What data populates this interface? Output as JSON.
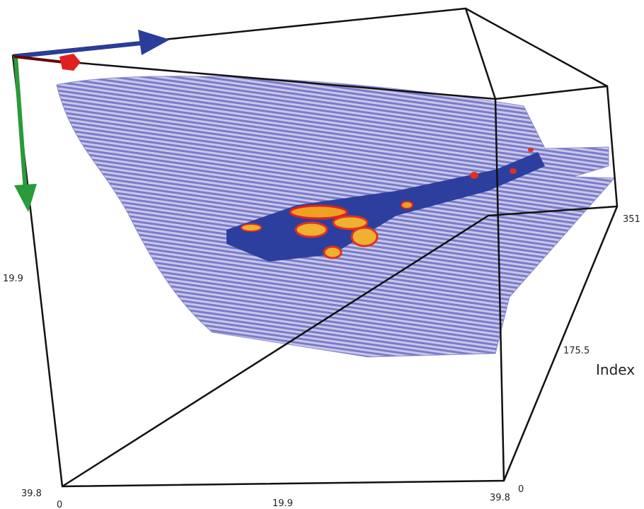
{
  "axes": {
    "vertical": {
      "ticks": [
        "19.9",
        "39.8"
      ]
    },
    "horizontal": {
      "ticks": [
        "0",
        "19.9",
        "39.8"
      ]
    },
    "depth": {
      "ticks": [
        "0",
        "175.5",
        "351"
      ],
      "label": "Index"
    }
  }
}
